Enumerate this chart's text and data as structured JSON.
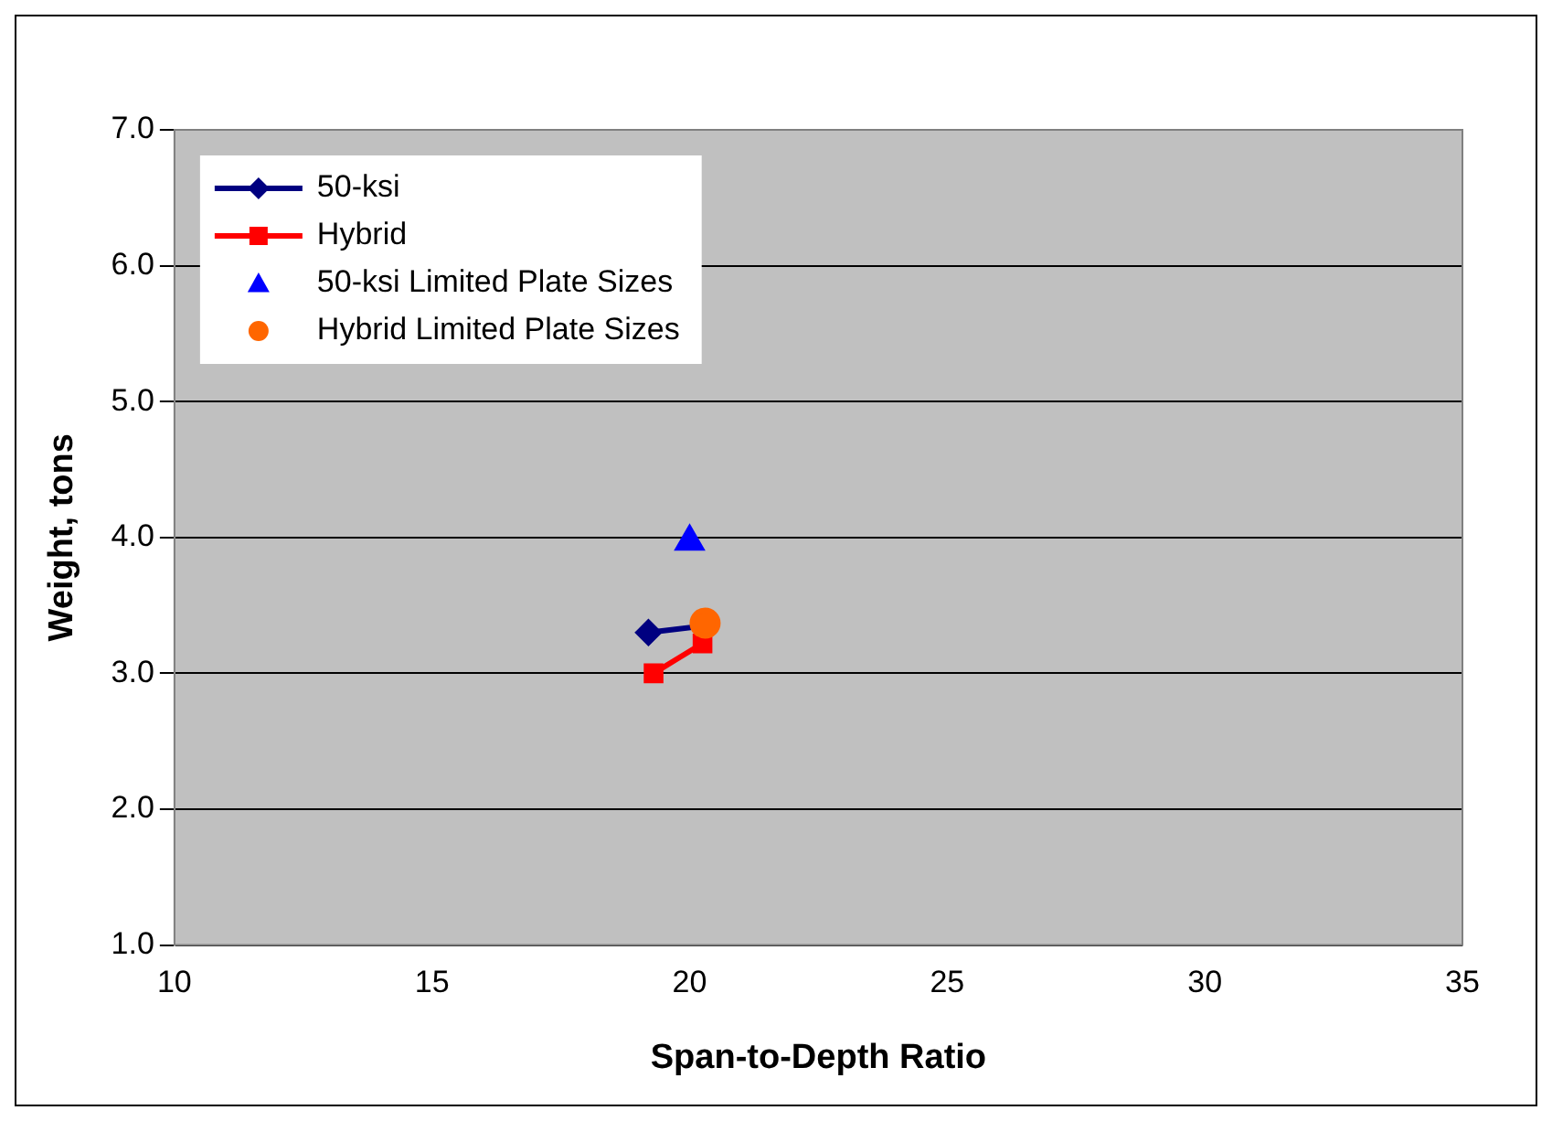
{
  "chart_data": {
    "type": "line",
    "xlabel": "Span-to-Depth Ratio",
    "ylabel": "Weight, tons",
    "xlim": [
      10,
      35
    ],
    "xticks": [
      10,
      15,
      20,
      25,
      30,
      35
    ],
    "ylim": [
      1,
      7
    ],
    "yticks": [
      {
        "value": 1,
        "label": "1.0"
      },
      {
        "value": 2,
        "label": "2.0"
      },
      {
        "value": 3,
        "label": "3.0"
      },
      {
        "value": 4,
        "label": "4.0"
      },
      {
        "value": 5,
        "label": "5.0"
      },
      {
        "value": 6,
        "label": "6.0"
      },
      {
        "value": 7,
        "label": "7.0"
      }
    ],
    "grid": "y",
    "legend": "top left",
    "series": [
      {
        "name": "50-ksi",
        "marker": "diamond",
        "color": "#000080",
        "x": [
          19.2,
          20.3
        ],
        "values": [
          3.3,
          3.35
        ]
      },
      {
        "name": "Hybrid",
        "marker": "square",
        "color": "#ff0000",
        "x": [
          19.3,
          20.25
        ],
        "values": [
          3.0,
          3.22
        ]
      },
      {
        "name": "50-ksi Limited Plate Sizes",
        "type": "scatter",
        "marker": "triangle",
        "color": "#0000ff",
        "x": [
          20.0
        ],
        "values": [
          3.97
        ]
      },
      {
        "name": "Hybrid Limited Plate Sizes",
        "type": "scatter",
        "marker": "circle",
        "color": "#ff6600",
        "x": [
          20.3
        ],
        "values": [
          3.37
        ]
      }
    ]
  }
}
